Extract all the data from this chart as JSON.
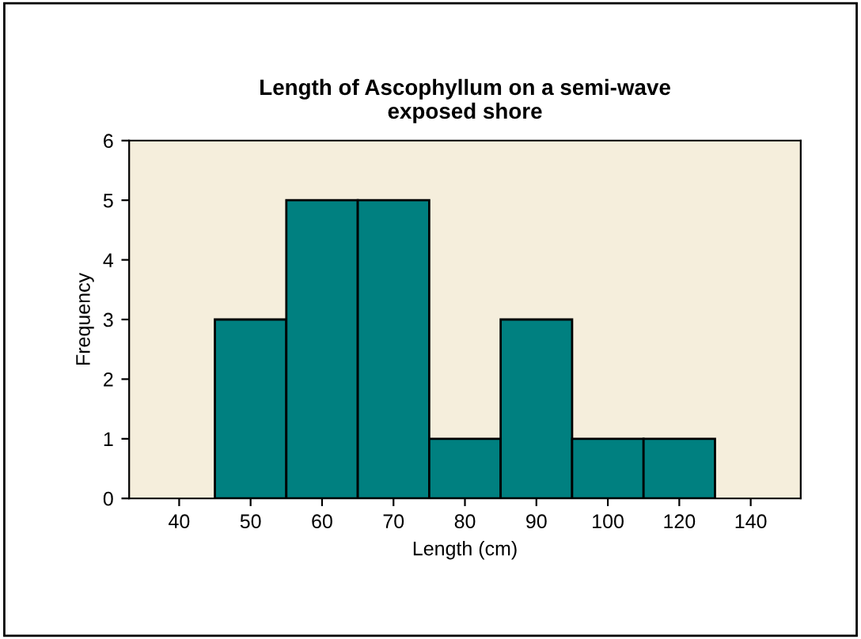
{
  "chart_data": {
    "type": "bar",
    "title": "Length of Ascophyllum on a semi-wave\nexposed shore",
    "xlabel": "Length (cm)",
    "ylabel": "Frequency",
    "categories": [
      "40",
      "50",
      "60",
      "70",
      "80",
      "90",
      "100",
      "120",
      "140"
    ],
    "values": [
      0,
      3,
      5,
      5,
      1,
      3,
      1,
      1,
      0
    ],
    "color": "#008080",
    "ylim": [
      0,
      6
    ],
    "yticks": [
      0,
      1,
      2,
      3,
      4,
      5,
      6
    ],
    "grid": false,
    "legend": false
  }
}
